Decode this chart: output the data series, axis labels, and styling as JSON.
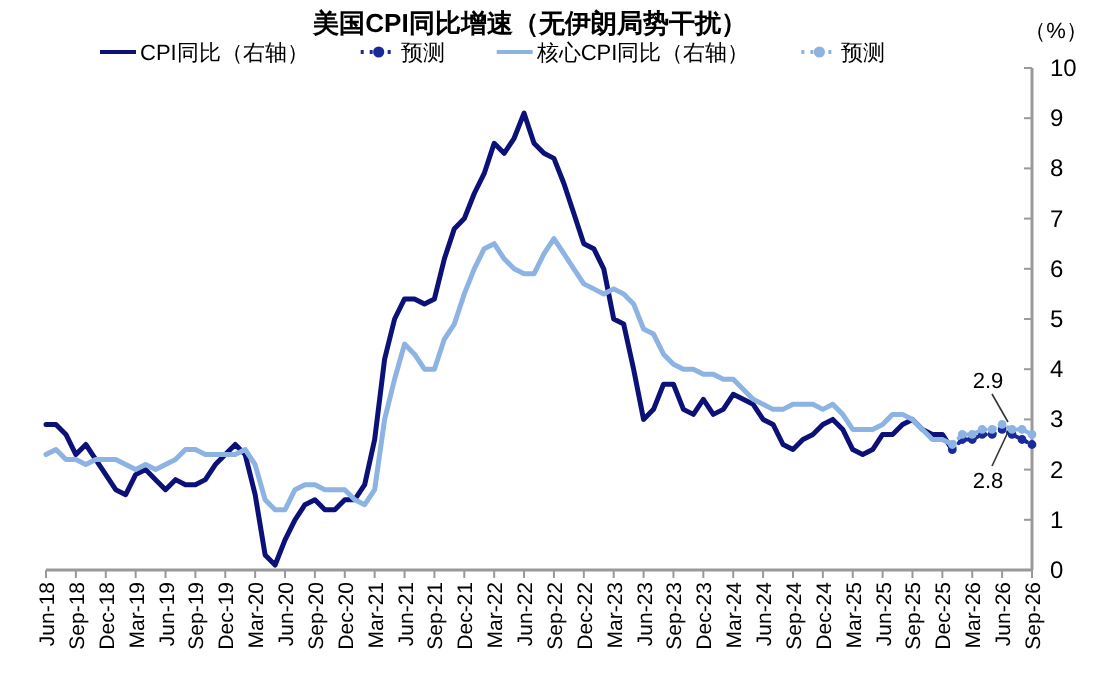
{
  "chart_data": {
    "type": "line",
    "title": "美国CPI同比增速（无伊朗局势干扰）",
    "y2label": "（%）",
    "legend": "top",
    "grid": false,
    "x": [
      "2018-06",
      "2018-07",
      "2018-08",
      "2018-09",
      "2018-10",
      "2018-11",
      "2018-12",
      "2019-01",
      "2019-02",
      "2019-03",
      "2019-04",
      "2019-05",
      "2019-06",
      "2019-07",
      "2019-08",
      "2019-09",
      "2019-10",
      "2019-11",
      "2019-12",
      "2020-01",
      "2020-02",
      "2020-03",
      "2020-04",
      "2020-05",
      "2020-06",
      "2020-07",
      "2020-08",
      "2020-09",
      "2020-10",
      "2020-11",
      "2020-12",
      "2021-01",
      "2021-02",
      "2021-03",
      "2021-04",
      "2021-05",
      "2021-06",
      "2021-07",
      "2021-08",
      "2021-09",
      "2021-10",
      "2021-11",
      "2021-12",
      "2022-01",
      "2022-02",
      "2022-03",
      "2022-04",
      "2022-05",
      "2022-06",
      "2022-07",
      "2022-08",
      "2022-09",
      "2022-10",
      "2022-11",
      "2022-12",
      "2023-01",
      "2023-02",
      "2023-03",
      "2023-04",
      "2023-05",
      "2023-06",
      "2023-07",
      "2023-08",
      "2023-09",
      "2023-10",
      "2023-11",
      "2023-12",
      "2024-01",
      "2024-02",
      "2024-03",
      "2024-04",
      "2024-05",
      "2024-06",
      "2024-07",
      "2024-08",
      "2024-09",
      "2024-10",
      "2024-11",
      "2024-12",
      "2025-01",
      "2025-02",
      "2025-03",
      "2025-04",
      "2025-05",
      "2025-06",
      "2025-07",
      "2025-08",
      "2025-09",
      "2025-10",
      "2025-11",
      "2025-12",
      "2026-01"
    ],
    "series": [
      {
        "name": "CPI同比（右轴）",
        "color": "#0c1178",
        "axis": "y2",
        "line_style": "solid",
        "marker": "none",
        "values": [
          2.9,
          2.9,
          2.7,
          2.3,
          2.5,
          2.2,
          1.9,
          1.6,
          1.5,
          1.9,
          2.0,
          1.8,
          1.6,
          1.8,
          1.7,
          1.7,
          1.8,
          2.1,
          2.3,
          2.5,
          2.3,
          1.5,
          0.3,
          0.1,
          0.6,
          1.0,
          1.3,
          1.4,
          1.2,
          1.2,
          1.4,
          1.4,
          1.7,
          2.6,
          4.2,
          5.0,
          5.4,
          5.4,
          5.3,
          5.4,
          6.2,
          6.8,
          7.0,
          7.5,
          7.9,
          8.5,
          8.3,
          8.6,
          9.1,
          8.5,
          8.3,
          8.2,
          7.7,
          7.1,
          6.5,
          6.4,
          6.0,
          5.0,
          4.9,
          4.0,
          3.0,
          3.2,
          3.7,
          3.7,
          3.2,
          3.1,
          3.4,
          3.1,
          3.2,
          3.5,
          3.4,
          3.3,
          3.0,
          2.9,
          2.5,
          2.4,
          2.6,
          2.7,
          2.9,
          3.0,
          2.8,
          2.4,
          2.3,
          2.4,
          2.7,
          2.7,
          2.9,
          3.0,
          2.8,
          2.7,
          2.7,
          2.4
        ]
      },
      {
        "name": "预测",
        "color": "#1a2a9a",
        "axis": "y2",
        "line_style": "dotted",
        "marker": "circle",
        "x": [
          "2026-01",
          "2026-02",
          "2026-03",
          "2026-04",
          "2026-05",
          "2026-06",
          "2026-07",
          "2026-08",
          "2026-09"
        ],
        "values": [
          2.4,
          2.6,
          2.6,
          2.7,
          2.7,
          2.8,
          2.7,
          2.6,
          2.5
        ]
      },
      {
        "name": "核心CPI同比（右轴）",
        "color": "#8db3e2",
        "axis": "y2",
        "line_style": "solid",
        "marker": "none",
        "values": [
          2.3,
          2.4,
          2.2,
          2.2,
          2.1,
          2.2,
          2.2,
          2.2,
          2.1,
          2.0,
          2.1,
          2.0,
          2.1,
          2.2,
          2.4,
          2.4,
          2.3,
          2.3,
          2.3,
          2.3,
          2.4,
          2.1,
          1.4,
          1.2,
          1.2,
          1.6,
          1.7,
          1.7,
          1.6,
          1.6,
          1.6,
          1.4,
          1.3,
          1.6,
          3.0,
          3.8,
          4.5,
          4.3,
          4.0,
          4.0,
          4.6,
          4.9,
          5.5,
          6.0,
          6.4,
          6.5,
          6.2,
          6.0,
          5.9,
          5.9,
          6.3,
          6.6,
          6.3,
          6.0,
          5.7,
          5.6,
          5.5,
          5.6,
          5.5,
          5.3,
          4.8,
          4.7,
          4.3,
          4.1,
          4.0,
          4.0,
          3.9,
          3.9,
          3.8,
          3.8,
          3.6,
          3.4,
          3.3,
          3.2,
          3.2,
          3.3,
          3.3,
          3.3,
          3.2,
          3.3,
          3.1,
          2.8,
          2.8,
          2.8,
          2.9,
          3.1,
          3.1,
          3.0,
          2.8,
          2.6,
          2.6,
          2.5
        ]
      },
      {
        "name": "预测",
        "color": "#8db3e2",
        "axis": "y2",
        "line_style": "dotted",
        "marker": "circle",
        "x": [
          "2026-01",
          "2026-02",
          "2026-03",
          "2026-04",
          "2026-05",
          "2026-06",
          "2026-07",
          "2026-08",
          "2026-09"
        ],
        "values": [
          2.5,
          2.7,
          2.7,
          2.8,
          2.8,
          2.9,
          2.8,
          2.8,
          2.7
        ]
      }
    ],
    "annotations": [
      "2.9",
      "2.8"
    ],
    "xlim": [
      "2018-06",
      "2026-09"
    ],
    "xticks": [
      {
        "value": "2018-06",
        "label": "Jun-18"
      },
      {
        "value": "2018-09",
        "label": "Sep-18"
      },
      {
        "value": "2018-12",
        "label": "Dec-18"
      },
      {
        "value": "2019-03",
        "label": "Mar-19"
      },
      {
        "value": "2019-06",
        "label": "Jun-19"
      },
      {
        "value": "2019-09",
        "label": "Sep-19"
      },
      {
        "value": "2019-12",
        "label": "Dec-19"
      },
      {
        "value": "2020-03",
        "label": "Mar-20"
      },
      {
        "value": "2020-06",
        "label": "Jun-20"
      },
      {
        "value": "2020-09",
        "label": "Sep-20"
      },
      {
        "value": "2020-12",
        "label": "Dec-20"
      },
      {
        "value": "2021-03",
        "label": "Mar-21"
      },
      {
        "value": "2021-06",
        "label": "Jun-21"
      },
      {
        "value": "2021-09",
        "label": "Sep-21"
      },
      {
        "value": "2021-12",
        "label": "Dec-21"
      },
      {
        "value": "2022-03",
        "label": "Mar-22"
      },
      {
        "value": "2022-06",
        "label": "Jun-22"
      },
      {
        "value": "2022-09",
        "label": "Sep-22"
      },
      {
        "value": "2022-12",
        "label": "Dec-22"
      },
      {
        "value": "2023-03",
        "label": "Mar-23"
      },
      {
        "value": "2023-06",
        "label": "Jun-23"
      },
      {
        "value": "2023-09",
        "label": "Sep-23"
      },
      {
        "value": "2023-12",
        "label": "Dec-23"
      },
      {
        "value": "2024-03",
        "label": "Mar-24"
      },
      {
        "value": "2024-06",
        "label": "Jun-24"
      },
      {
        "value": "2024-09",
        "label": "Sep-24"
      },
      {
        "value": "2024-12",
        "label": "Dec-24"
      },
      {
        "value": "2025-03",
        "label": "Mar-25"
      },
      {
        "value": "2025-06",
        "label": "Jun-25"
      },
      {
        "value": "2025-09",
        "label": "Sep-25"
      },
      {
        "value": "2025-12",
        "label": "Dec-25"
      },
      {
        "value": "2026-03",
        "label": "Mar-26"
      },
      {
        "value": "2026-06",
        "label": "Jun-26"
      },
      {
        "value": "2026-09",
        "label": "Sep-26"
      }
    ],
    "y2lim": [
      0,
      10
    ],
    "y2ticks": [
      0,
      1,
      2,
      3,
      4,
      5,
      6,
      7,
      8,
      9,
      10
    ]
  }
}
